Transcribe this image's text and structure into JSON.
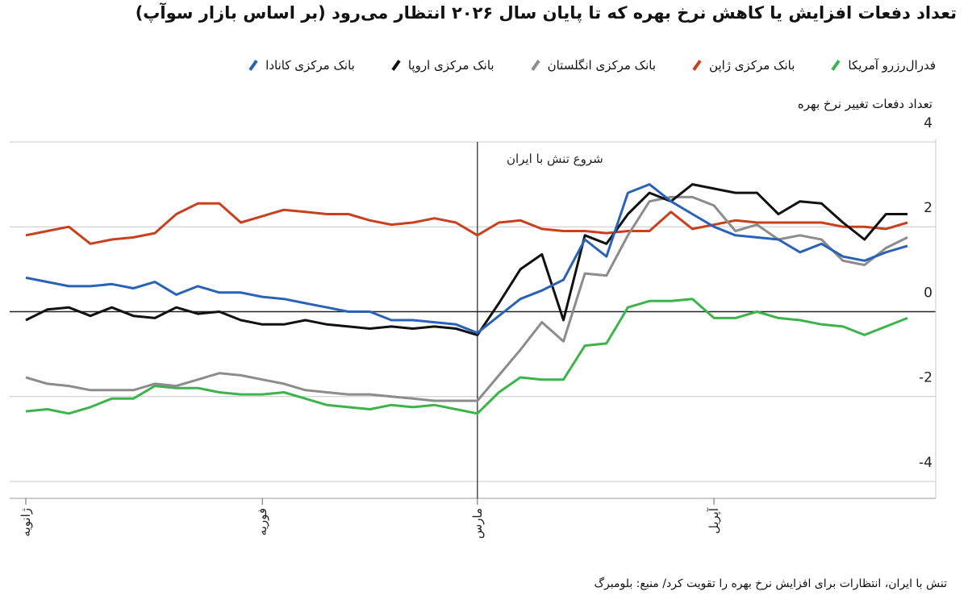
{
  "chart_data": {
    "type": "line",
    "title": "تعداد دفعات افزایش یا کاهش نرخ بهره که تا پایان سال ۲۰۲۶ انتظار می‌رود (بر اساس بازار سوآپ)",
    "y_label": "تعداد دفعات تغییر نرخ بهره",
    "footer": "تنش با ایران، انتظارات برای افزایش نرخ بهره را تقویت کرد/ منبع: بلومبرگ",
    "event": {
      "label": "شروع تنش با ایران",
      "x": 21
    },
    "categories": [
      "ژانویه",
      null,
      null,
      null,
      null,
      null,
      null,
      null,
      null,
      null,
      null,
      "فوریه",
      null,
      null,
      null,
      null,
      null,
      null,
      null,
      null,
      null,
      "مارس",
      null,
      null,
      null,
      null,
      null,
      null,
      null,
      null,
      null,
      null,
      "آپریل",
      null,
      null,
      null,
      null,
      null,
      null,
      null,
      null,
      null
    ],
    "ylim": [
      -4.4,
      4
    ],
    "yticks": [
      4,
      2,
      0,
      -2,
      -4
    ],
    "grid": true,
    "series": [
      {
        "name": "فدرال‌رزرو آمریکا",
        "color": "#3cb44b",
        "values": [
          -2.35,
          -2.3,
          -2.4,
          -2.25,
          -2.05,
          -2.05,
          -1.75,
          -1.8,
          -1.8,
          -1.9,
          -1.95,
          -1.95,
          -1.9,
          -2.05,
          -2.2,
          -2.25,
          -2.3,
          -2.2,
          -2.25,
          -2.2,
          -2.3,
          -2.4,
          -1.9,
          -1.55,
          -1.6,
          -1.6,
          -0.8,
          -0.75,
          0.1,
          0.25,
          0.25,
          0.3,
          -0.15,
          -0.15,
          0,
          -0.15,
          -0.2,
          -0.3,
          -0.35,
          -0.55,
          -0.35,
          -0.15
        ]
      },
      {
        "name": "بانک مرکزی ژاپن",
        "color": "#c8401e",
        "values": [
          1.8,
          1.9,
          2.0,
          1.6,
          1.7,
          1.75,
          1.85,
          2.3,
          2.55,
          2.55,
          2.1,
          2.25,
          2.4,
          2.35,
          2.3,
          2.3,
          2.15,
          2.05,
          2.1,
          2.2,
          2.1,
          1.8,
          2.1,
          2.15,
          1.95,
          1.9,
          1.9,
          1.85,
          1.9,
          1.9,
          2.35,
          1.95,
          2.05,
          2.15,
          2.1,
          2.1,
          2.1,
          2.1,
          2.0,
          2.0,
          1.95,
          2.1
        ]
      },
      {
        "name": "بانک مرکزی انگلستان",
        "color": "#8c8c8c",
        "values": [
          -1.55,
          -1.7,
          -1.75,
          -1.85,
          -1.85,
          -1.85,
          -1.7,
          -1.75,
          -1.6,
          -1.45,
          -1.5,
          -1.6,
          -1.7,
          -1.85,
          -1.9,
          -1.95,
          -1.95,
          -2.0,
          -2.05,
          -2.1,
          -2.1,
          -2.1,
          -1.5,
          -0.9,
          -0.25,
          -0.7,
          0.9,
          0.85,
          1.8,
          2.6,
          2.7,
          2.7,
          2.5,
          1.9,
          2.05,
          1.7,
          1.8,
          1.7,
          1.2,
          1.1,
          1.5,
          1.75
        ]
      },
      {
        "name": "بانک مرکزی اروپا",
        "color": "#111111",
        "values": [
          -0.2,
          0.05,
          0.1,
          -0.1,
          0.1,
          -0.1,
          -0.15,
          0.1,
          -0.05,
          0,
          -0.2,
          -0.3,
          -0.3,
          -0.2,
          -0.3,
          -0.35,
          -0.4,
          -0.35,
          -0.4,
          -0.35,
          -0.4,
          -0.55,
          0.2,
          1.0,
          1.35,
          -0.2,
          1.8,
          1.6,
          2.3,
          2.8,
          2.6,
          3.0,
          2.9,
          2.8,
          2.8,
          2.3,
          2.6,
          2.55,
          2.1,
          1.7,
          2.3,
          2.3
        ]
      },
      {
        "name": "بانک مرکزی کانادا",
        "color": "#2a62b8",
        "values": [
          0.8,
          0.7,
          0.6,
          0.6,
          0.65,
          0.55,
          0.7,
          0.4,
          0.6,
          0.45,
          0.45,
          0.35,
          0.3,
          0.2,
          0.1,
          0,
          0,
          -0.2,
          -0.2,
          -0.25,
          -0.3,
          -0.5,
          -0.1,
          0.3,
          0.5,
          0.75,
          1.7,
          1.3,
          2.8,
          3.0,
          2.6,
          2.3,
          2.0,
          1.8,
          1.75,
          1.7,
          1.4,
          1.6,
          1.3,
          1.2,
          1.4,
          1.55
        ]
      }
    ]
  }
}
